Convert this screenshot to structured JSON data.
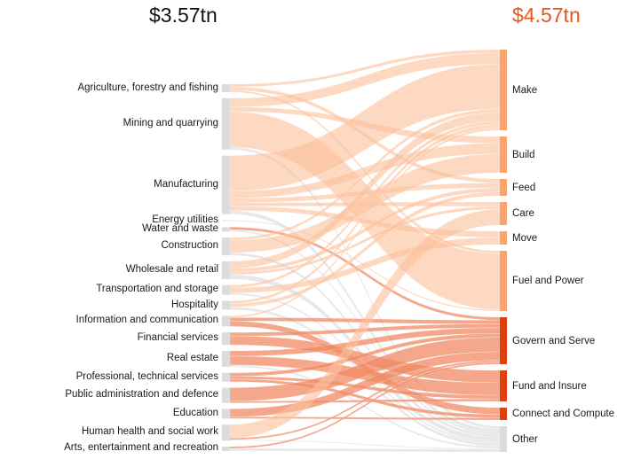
{
  "title_left_total": "$3.57tn",
  "title_right_total": "$4.57tn",
  "colors": {
    "source_node": "#dcdcdc",
    "light_flow": "#fbbf99",
    "dark_flow": "#f08a64",
    "other_flow": "#d9d9d9",
    "light_target": "#f9a46f",
    "dark_target": "#e0400f",
    "other_target": "#dcdcdc",
    "accent_total": "#e8561d"
  },
  "chart_data": {
    "type": "sankey",
    "title": "",
    "left_total": "$3.57tn",
    "right_total": "$4.57tn",
    "sources": [
      {
        "name": "Agriculture, forestry and fishing",
        "value": 9,
        "group": "light"
      },
      {
        "name": "Mining and quarrying",
        "value": 58,
        "group": "light"
      },
      {
        "name": "Manufacturing",
        "value": 66,
        "group": "light"
      },
      {
        "name": "Energy utilities",
        "value": 1,
        "group": "light"
      },
      {
        "name": "Water and waste",
        "value": 5,
        "group": "light"
      },
      {
        "name": "Construction",
        "value": 20,
        "group": "light"
      },
      {
        "name": "Wholesale and retail",
        "value": 20,
        "group": "light"
      },
      {
        "name": "Transportation and storage",
        "value": 11,
        "group": "light"
      },
      {
        "name": "Hospitality",
        "value": 10,
        "group": "light"
      },
      {
        "name": "Information and communication",
        "value": 12,
        "group": "dark"
      },
      {
        "name": "Financial services",
        "value": 14,
        "group": "dark"
      },
      {
        "name": "Real estate",
        "value": 18,
        "group": "dark"
      },
      {
        "name": "Professional, technical services",
        "value": 10,
        "group": "dark"
      },
      {
        "name": "Public administration and defence",
        "value": 17,
        "group": "dark"
      },
      {
        "name": "Education",
        "value": 11,
        "group": "dark"
      },
      {
        "name": "Human health and social work",
        "value": 18,
        "group": "light"
      },
      {
        "name": "Arts, entertainment and recreation",
        "value": 5,
        "group": "light"
      }
    ],
    "targets": [
      {
        "name": "Make",
        "value": 91,
        "group": "light"
      },
      {
        "name": "Build",
        "value": 41,
        "group": "light"
      },
      {
        "name": "Feed",
        "value": 19,
        "group": "light"
      },
      {
        "name": "Care",
        "value": 26,
        "group": "light"
      },
      {
        "name": "Move",
        "value": 15,
        "group": "light"
      },
      {
        "name": "Fuel and Power",
        "value": 68,
        "group": "light"
      },
      {
        "name": "Govern and Serve",
        "value": 53,
        "group": "dark"
      },
      {
        "name": "Fund and Insure",
        "value": 35,
        "group": "dark"
      },
      {
        "name": "Connect and Compute",
        "value": 14,
        "group": "dark"
      },
      {
        "name": "Other",
        "value": 29,
        "group": "other"
      }
    ],
    "links": [
      {
        "source": 0,
        "target": 0,
        "value": 3
      },
      {
        "source": 0,
        "target": 2,
        "value": 4
      },
      {
        "source": 0,
        "target": 5,
        "value": 2
      },
      {
        "source": 1,
        "target": 0,
        "value": 10
      },
      {
        "source": 1,
        "target": 5,
        "value": 40
      },
      {
        "source": 1,
        "target": 1,
        "value": 5
      },
      {
        "source": 1,
        "target": 9,
        "value": 3
      },
      {
        "source": 2,
        "target": 0,
        "value": 40
      },
      {
        "source": 2,
        "target": 1,
        "value": 8
      },
      {
        "source": 2,
        "target": 4,
        "value": 5
      },
      {
        "source": 2,
        "target": 3,
        "value": 4
      },
      {
        "source": 2,
        "target": 2,
        "value": 5
      },
      {
        "source": 2,
        "target": 9,
        "value": 4
      },
      {
        "source": 3,
        "target": 5,
        "value": 1
      },
      {
        "source": 4,
        "target": 6,
        "value": 3
      },
      {
        "source": 4,
        "target": 9,
        "value": 2
      },
      {
        "source": 5,
        "target": 1,
        "value": 14
      },
      {
        "source": 5,
        "target": 0,
        "value": 3
      },
      {
        "source": 5,
        "target": 9,
        "value": 3
      },
      {
        "source": 6,
        "target": 0,
        "value": 8
      },
      {
        "source": 6,
        "target": 2,
        "value": 4
      },
      {
        "source": 6,
        "target": 3,
        "value": 3
      },
      {
        "source": 6,
        "target": 9,
        "value": 5
      },
      {
        "source": 7,
        "target": 4,
        "value": 6
      },
      {
        "source": 7,
        "target": 0,
        "value": 3
      },
      {
        "source": 7,
        "target": 9,
        "value": 2
      },
      {
        "source": 8,
        "target": 2,
        "value": 4
      },
      {
        "source": 8,
        "target": 0,
        "value": 3
      },
      {
        "source": 8,
        "target": 9,
        "value": 3
      },
      {
        "source": 9,
        "target": 8,
        "value": 6
      },
      {
        "source": 9,
        "target": 6,
        "value": 4
      },
      {
        "source": 9,
        "target": 0,
        "value": 2
      },
      {
        "source": 10,
        "target": 7,
        "value": 10
      },
      {
        "source": 10,
        "target": 6,
        "value": 4
      },
      {
        "source": 11,
        "target": 7,
        "value": 10
      },
      {
        "source": 11,
        "target": 6,
        "value": 6
      },
      {
        "source": 11,
        "target": 9,
        "value": 2
      },
      {
        "source": 12,
        "target": 6,
        "value": 4
      },
      {
        "source": 12,
        "target": 8,
        "value": 3
      },
      {
        "source": 12,
        "target": 7,
        "value": 3
      },
      {
        "source": 13,
        "target": 6,
        "value": 15
      },
      {
        "source": 13,
        "target": 7,
        "value": 2
      },
      {
        "source": 14,
        "target": 6,
        "value": 9
      },
      {
        "source": 14,
        "target": 8,
        "value": 2
      },
      {
        "source": 15,
        "target": 3,
        "value": 15
      },
      {
        "source": 15,
        "target": 6,
        "value": 2
      },
      {
        "source": 15,
        "target": 9,
        "value": 1
      },
      {
        "source": 16,
        "target": 9,
        "value": 3
      },
      {
        "source": 16,
        "target": 6,
        "value": 2
      }
    ]
  }
}
